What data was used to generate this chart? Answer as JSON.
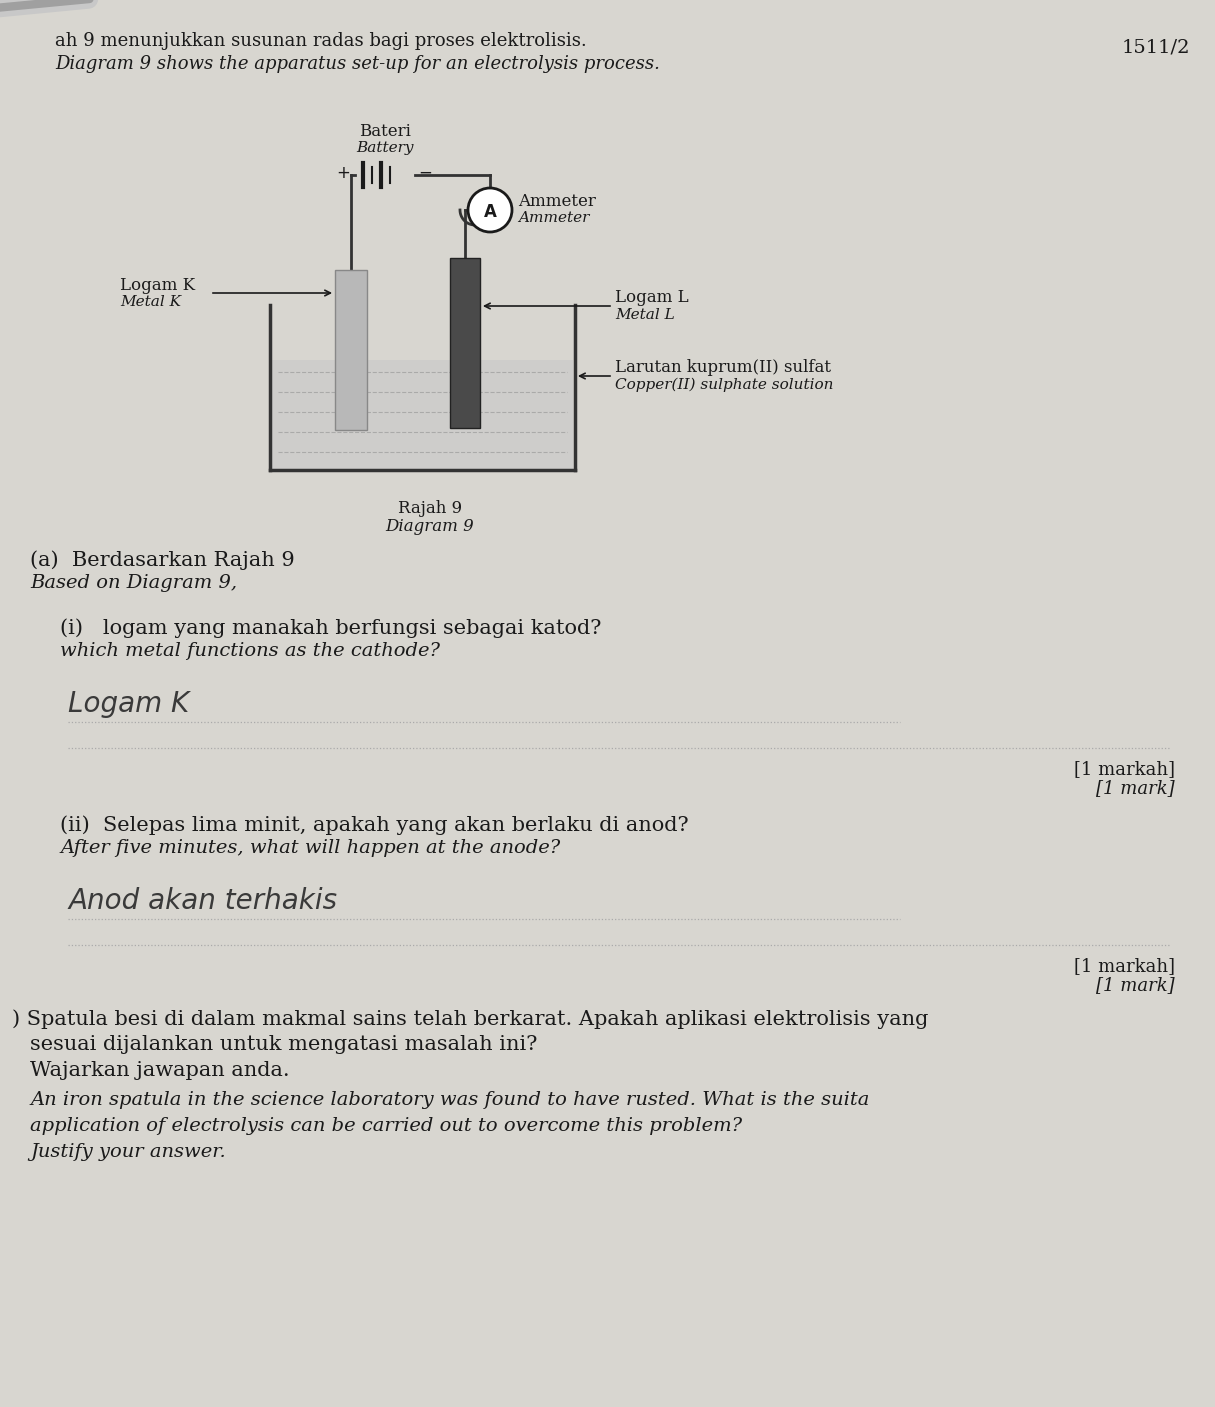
{
  "bg_color": "#d8d6d0",
  "paper_color": "#e8e7e2",
  "page_number": "1511/2",
  "page_title_malay": "ah 9 menunjukkan susunan radas bagi proses elektrolisis.",
  "page_title_english": "Diagram 9 shows the apparatus set-up for an electrolysis process.",
  "battery_label_malay": "Bateri",
  "battery_label_english": "Battery",
  "ammeter_label_malay": "Ammeter",
  "ammeter_label_english": "Ammeter",
  "metal_k_label_malay": "Logam K",
  "metal_k_label_english": "Metal K",
  "metal_l_label_malay": "Logam L",
  "metal_l_label_english": "Metal L",
  "solution_label_malay": "Larutan kuprum(II) sulfat",
  "solution_label_english": "Copper(II) sulphate solution",
  "diagram_label_malay": "Rajah 9",
  "diagram_label_english": "Diagram 9",
  "section_a_malay": "(a)  Berdasarkan Rajah 9",
  "section_a_english": "Based on Diagram 9,",
  "q_i_malay": "(i)   logam yang manakah berfungsi sebagai katod?",
  "q_i_english": "which metal functions as the cathode?",
  "q_i_answer": "Logam K",
  "q_i_marks_malay": "[1 markah]",
  "q_i_marks_english": "[1 mark]",
  "q_ii_malay": "(ii)  Selepas lima minit, apakah yang akan berlaku di anod?",
  "q_ii_english": "After five minutes, what will happen at the anode?",
  "q_ii_answer": "Anod akan terhakis",
  "q_ii_marks_malay": "[1 markah]",
  "q_ii_marks_english": "[1 mark]",
  "q_b_prefix": ") ",
  "q_b_malay1": "Spatula besi di dalam makmal sains telah berkarat. Apakah aplikasi elektrolisis yang",
  "q_b_malay2": "sesuai dijalankan untuk mengatasi masalah ini?",
  "q_b_malay3": "Wajarkan jawapan anda.",
  "q_b_eng1": "An iron spatula in the science laboratory was found to have rusted. What is the suita",
  "q_b_eng2": "application of electrolysis can be carried out to overcome this problem?",
  "q_b_eng3": "Justify your answer.",
  "pencil_color": "#bbbbbb",
  "electrode_k_color": "#b8b8b8",
  "electrode_l_color": "#4a4a4a",
  "beaker_color": "#333333",
  "solution_fill": "#c8c8c8",
  "wire_color": "#333333",
  "text_color": "#1a1a1a",
  "handwriting_color": "#3a3a3a",
  "dotted_color": "#aaaaaa"
}
